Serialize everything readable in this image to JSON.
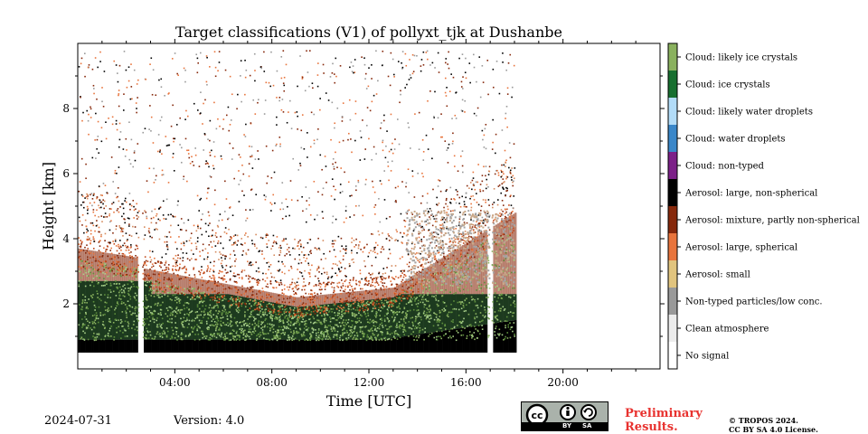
{
  "chart_data": {
    "type": "heatmap",
    "title": "Target classifications (V1) of pollyxt_tjk at Dushanbe",
    "xlabel": "Time [UTC]",
    "ylabel": "Height [km]",
    "x_tick_labels": [
      "04:00",
      "08:00",
      "12:00",
      "16:00",
      "20:00"
    ],
    "x_ticks_hours": [
      4,
      8,
      12,
      16,
      20
    ],
    "xlim_hours": [
      0,
      24
    ],
    "y_tick_labels": [
      "2",
      "4",
      "6",
      "8"
    ],
    "y_ticks_km": [
      2,
      4,
      6,
      8
    ],
    "ylim_km": [
      0,
      10
    ],
    "data_end_hours": 18.0,
    "data_gaps_hours": [
      [
        2.5,
        2.65
      ],
      [
        16.95,
        17.05
      ]
    ],
    "no_signal_below_km": 0.5,
    "layers": [
      {
        "class": "Aerosol: large, non-spherical",
        "from_km": 0.5,
        "to_km": 0.9
      },
      {
        "class": "Aerosol: small",
        "from_km": 0.9,
        "to_km": 2.3
      },
      {
        "class": "Aerosol: mixture, partly non-spherical",
        "from_km": 2.3,
        "to_km": 3.8
      },
      {
        "class": "Aerosol: large, spherical",
        "from_km": 3.0,
        "to_km": 5.0
      }
    ],
    "legend": {
      "placement": "right colorbar",
      "entries": [
        {
          "label": "Cloud: likely ice crystals",
          "color": "#8ab15e"
        },
        {
          "label": "Cloud: ice crystals",
          "color": "#176f2f"
        },
        {
          "label": "Cloud: likely water droplets",
          "color": "#b2dcf8"
        },
        {
          "label": "Cloud: water droplets",
          "color": "#3a87c9"
        },
        {
          "label": "Cloud: non-typed",
          "color": "#7c2088"
        },
        {
          "label": "Aerosol: large, non-spherical",
          "color": "#000000"
        },
        {
          "label": "Aerosol: mixture, partly non-spherical",
          "color": "#86280b"
        },
        {
          "label": "Aerosol: large, spherical",
          "color": "#e8743c"
        },
        {
          "label": "Aerosol: small",
          "color": "#e1c47e"
        },
        {
          "label": "Non-typed particles/low conc.",
          "color": "#999999"
        },
        {
          "label": "Clean atmosphere",
          "color": "#ececec"
        },
        {
          "label": "No signal",
          "color": "#ffffff"
        }
      ]
    }
  },
  "footer": {
    "date": "2024-07-31",
    "version": "Version: 4.0",
    "preliminary_line1": "Preliminary",
    "preliminary_line2": "Results.",
    "copyright_line1": "© TROPOS 2024.",
    "copyright_line2": "CC BY SA 4.0 License.",
    "cc_badge": {
      "by_label": "BY",
      "sa_label": "SA",
      "cc_label": "cc"
    }
  }
}
